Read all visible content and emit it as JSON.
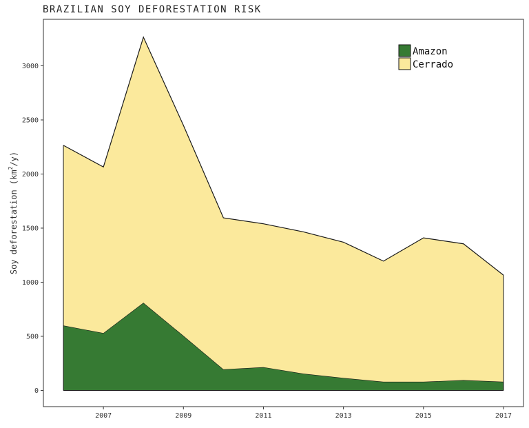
{
  "chart_data": {
    "type": "area",
    "title": "BRAZILIAN SOY DEFORESTATION RISK",
    "xlabel": "",
    "ylabel": "Soy deforestation (km",
    "ylabel_sup": "2",
    "ylabel_end": "/y)",
    "x": [
      2006,
      2007,
      2008,
      2009,
      2010,
      2011,
      2012,
      2013,
      2014,
      2015,
      2016,
      2017
    ],
    "xticks": [
      "2007",
      "2009",
      "2011",
      "2013",
      "2015",
      "2017"
    ],
    "yticks": [
      "0",
      "500",
      "1000",
      "1500",
      "2000",
      "2500",
      "3000"
    ],
    "xlim": [
      2005.5,
      2017.5
    ],
    "ylim": [
      -150,
      3430
    ],
    "stacked": true,
    "series": [
      {
        "name": "Amazon",
        "color": "#367a33",
        "values": [
          600,
          530,
          810,
          505,
          195,
          215,
          155,
          115,
          80,
          80,
          95,
          80
        ]
      },
      {
        "name": "Cerrado",
        "color": "#fbe99c",
        "values": [
          1665,
          1535,
          2455,
          1945,
          1400,
          1325,
          1310,
          1255,
          1115,
          1330,
          1260,
          985
        ]
      }
    ],
    "legend": {
      "position": "top-right"
    },
    "grid": false
  }
}
